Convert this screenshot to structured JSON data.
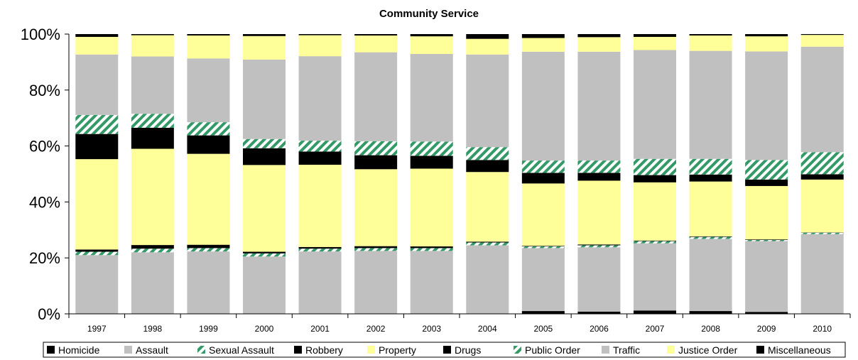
{
  "chart_data": {
    "type": "bar",
    "stacked": true,
    "percent": true,
    "title": "Community Service",
    "xlabel": "",
    "ylabel": "",
    "ylim": [
      0,
      100
    ],
    "yticks": [
      "0%",
      "20%",
      "40%",
      "60%",
      "80%",
      "100%"
    ],
    "categories": [
      "1997",
      "1998",
      "1999",
      "2000",
      "2001",
      "2002",
      "2003",
      "2004",
      "2005",
      "2006",
      "2007",
      "2008",
      "2009",
      "2010"
    ],
    "grid": false,
    "legend_position": "bottom",
    "series": [
      {
        "name": "Homicide",
        "color": "#000000",
        "pattern": "solid",
        "values": [
          0,
          0,
          0,
          0,
          0,
          0,
          0,
          0,
          1,
          0.8,
          1.2,
          1,
          0.7,
          0
        ]
      },
      {
        "name": "Assault",
        "color": "#c0c0c0",
        "pattern": "solid",
        "values": [
          21,
          22,
          22.3,
          20.5,
          22.3,
          22.5,
          22.5,
          24.5,
          22.5,
          23,
          24,
          25.8,
          25.3,
          28.5
        ]
      },
      {
        "name": "Sexual Assault",
        "color": "#339966",
        "pattern": "hatch",
        "values": [
          1.2,
          1.3,
          1.2,
          1.1,
          1,
          1,
          1,
          1,
          0.6,
          0.7,
          0.8,
          0.7,
          0.4,
          0.5
        ]
      },
      {
        "name": "Robbery",
        "color": "#000000",
        "pattern": "solid",
        "values": [
          0.8,
          1.3,
          1.2,
          0.6,
          0.6,
          0.7,
          0.6,
          0.3,
          0.2,
          0.3,
          0.2,
          0.2,
          0.2,
          0.1
        ]
      },
      {
        "name": "Property",
        "color": "#ffff99",
        "pattern": "solid",
        "values": [
          32.3,
          34.4,
          32.5,
          31,
          29.4,
          27.5,
          27.8,
          24.9,
          22.3,
          22.8,
          20.8,
          19.6,
          19.1,
          18.9
        ]
      },
      {
        "name": "Drugs",
        "color": "#000000",
        "pattern": "solid",
        "values": [
          9,
          7.5,
          6.6,
          6,
          4.7,
          5,
          4.6,
          4.3,
          3.8,
          2.8,
          2.6,
          2.5,
          2.3,
          1.9
        ]
      },
      {
        "name": "Public Order",
        "color": "#339966",
        "pattern": "hatch",
        "values": [
          6.8,
          5,
          4.7,
          3.3,
          3.9,
          5,
          5.1,
          4.6,
          4.4,
          4.4,
          5.8,
          5.6,
          7,
          7.9
        ]
      },
      {
        "name": "Traffic",
        "color": "#c0c0c0",
        "pattern": "solid",
        "values": [
          21.6,
          20.5,
          22.8,
          28.4,
          30.2,
          31.8,
          31.3,
          33.1,
          38.9,
          38.9,
          38.9,
          38.6,
          38.8,
          37.7
        ]
      },
      {
        "name": "Justice Order",
        "color": "#ffff99",
        "pattern": "solid",
        "values": [
          6.3,
          7.6,
          8.2,
          8.4,
          7.5,
          6,
          6.3,
          5.6,
          4.9,
          5.2,
          4.7,
          5.5,
          5.4,
          4.2
        ]
      },
      {
        "name": "Miscellaneous",
        "color": "#000000",
        "pattern": "solid",
        "values": [
          1,
          0.4,
          0.5,
          0.7,
          0.4,
          0.5,
          0.8,
          1.7,
          1.4,
          1.1,
          1,
          0.5,
          0.8,
          0.3
        ]
      }
    ]
  }
}
